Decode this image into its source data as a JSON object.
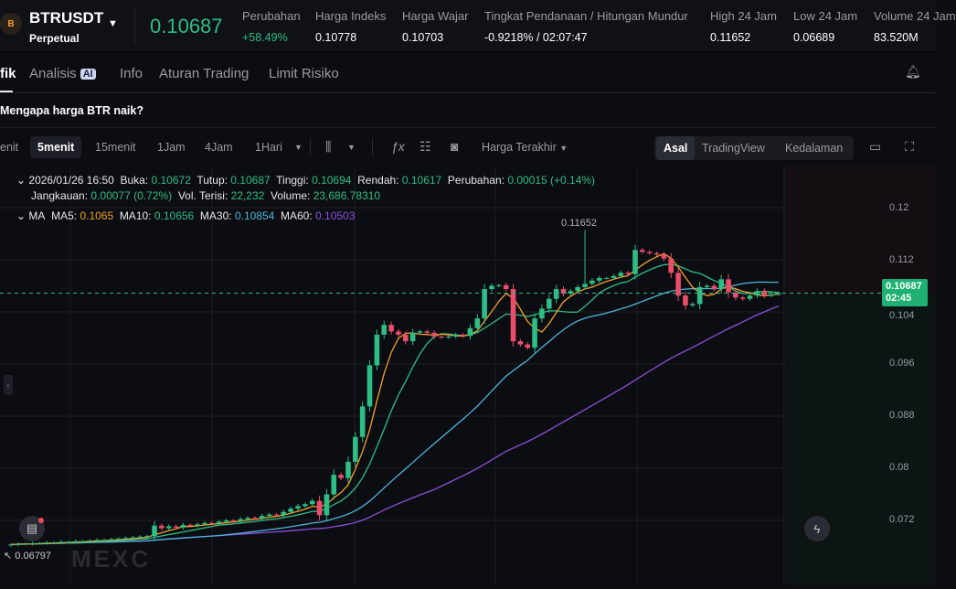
{
  "header": {
    "symbol": "BTRUSDT",
    "contract_type": "Perpetual",
    "contract_type_label": "Perpetual",
    "last_price": "0.10687",
    "stats": [
      {
        "label": "Perubahan",
        "value": "+58.49%"
      },
      {
        "label": "Harga Indeks",
        "value": "0.10778"
      },
      {
        "label": "Harga Wajar",
        "value": "0.10703"
      },
      {
        "label": "Tingkat Pendanaan / Hitungan Mundur",
        "value": "-0.9218% / 02:07:47"
      },
      {
        "label": "High 24 Jam",
        "value": "0.11652"
      },
      {
        "label": "Low 24 Jam",
        "value": "0.06689"
      },
      {
        "label": "Volume 24 Jam",
        "value": "83.520M"
      }
    ]
  },
  "tabs": [
    {
      "label": "fik",
      "active": true
    },
    {
      "label": "Analisis",
      "badge": "AI"
    },
    {
      "label": "Info"
    },
    {
      "label": "Aturan Trading"
    },
    {
      "label": "Limit Risiko"
    }
  ],
  "banner": "Mengapa harga BTR naik?",
  "toolbar": {
    "timeframes": [
      "enit",
      "5menit",
      "15menit",
      "1Jam",
      "4Jam",
      "1Hari"
    ],
    "active_timeframe": "5menit",
    "price_type": "Harga Terakhir",
    "views": [
      "Asal",
      "TradingView",
      "Kedalaman"
    ],
    "active_view": "Asal"
  },
  "legend": {
    "time": "2026/01/26 16:50",
    "open_label": "Buka:",
    "open": "0.10672",
    "close_label": "Tutup:",
    "close": "0.10687",
    "high_label": "Tinggi:",
    "high": "0.10694",
    "low_label": "Rendah:",
    "low": "0.10617",
    "change_label": "Perubahan:",
    "change": "0.00015 (+0.14%)",
    "range_label": "Jangkauan:",
    "range": "0.00077 (0.72%)",
    "filled_label": "Vol. Terisi:",
    "filled": "22,232",
    "volume_label": "Volume:",
    "volume": "23,686.78310",
    "ma_label": "MA",
    "ma5_label": "MA5:",
    "ma5": "0.1065",
    "ma10_label": "MA10:",
    "ma10": "0.10656",
    "ma30_label": "MA30:",
    "ma30": "0.10854",
    "ma60_label": "MA60:",
    "ma60": "0.10503"
  },
  "price_label": {
    "price": "0.10687",
    "countdown": "02:45"
  },
  "watermark": "MEXC",
  "colors": {
    "up": "#2dbd85",
    "down": "#ea4e6a",
    "ma5": "#f0a028",
    "ma10": "#2dbd85",
    "ma30": "#4fb3d9",
    "ma60": "#8a4fdc"
  },
  "chart_data": {
    "type": "candlestick",
    "y_ticks": [
      "0.12",
      "0.112",
      "0.104",
      "0.096",
      "0.088",
      "0.08",
      "0.072"
    ],
    "ylim": [
      0.064,
      0.1266
    ],
    "max_high_label": "0.11652",
    "min_low_label": "0.06797",
    "closes": [
      0.0683,
      0.0684,
      0.0684,
      0.0685,
      0.0685,
      0.0686,
      0.0686,
      0.0687,
      0.0687,
      0.0688,
      0.0688,
      0.0689,
      0.069,
      0.069,
      0.0691,
      0.0692,
      0.0693,
      0.0694,
      0.0695,
      0.0696,
      0.0712,
      0.0708,
      0.0711,
      0.0709,
      0.0713,
      0.0712,
      0.0714,
      0.0716,
      0.0715,
      0.0718,
      0.072,
      0.0719,
      0.0722,
      0.0724,
      0.0723,
      0.0727,
      0.0729,
      0.0728,
      0.0733,
      0.0738,
      0.0742,
      0.0745,
      0.075,
      0.0728,
      0.076,
      0.079,
      0.0785,
      0.081,
      0.0848,
      0.0895,
      0.0958,
      0.1005,
      0.102,
      0.101,
      0.1005,
      0.0995,
      0.1008,
      0.101,
      0.1008,
      0.1002,
      0.1001,
      0.1002,
      0.1005,
      0.1003,
      0.1015,
      0.103,
      0.1075,
      0.108,
      0.1081,
      0.1075,
      0.0995,
      0.099,
      0.0985,
      0.103,
      0.1045,
      0.106,
      0.1075,
      0.1068,
      0.1072,
      0.1078,
      0.1083,
      0.1088,
      0.1092,
      0.1092,
      0.1095,
      0.11,
      0.1098,
      0.1135,
      0.1132,
      0.113,
      0.1128,
      0.1122,
      0.11,
      0.1065,
      0.105,
      0.1052,
      0.1078,
      0.108,
      0.1075,
      0.109,
      0.107,
      0.1062,
      0.106,
      0.1065,
      0.1072,
      0.1065,
      0.1067,
      0.10687
    ],
    "moving_averages": [
      "MA5",
      "MA10",
      "MA30",
      "MA60"
    ]
  }
}
